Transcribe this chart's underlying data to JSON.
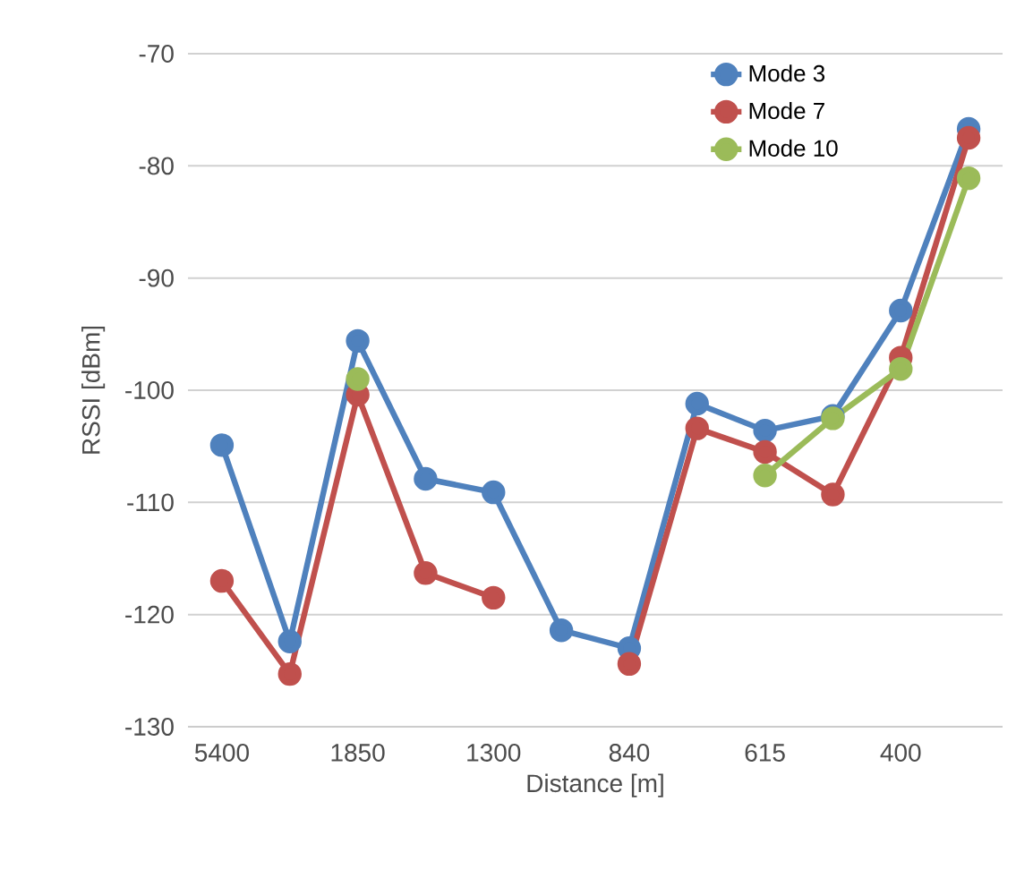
{
  "chart_data": {
    "type": "line",
    "xlabel": "Distance [m]",
    "ylabel": "RSSI [dBm]",
    "categories": [
      "5400",
      null,
      "1850",
      null,
      "1300",
      null,
      "840",
      null,
      "615",
      null,
      "400",
      null
    ],
    "series": [
      {
        "name": "Mode 3",
        "color": "#4f81bd",
        "values": [
          -104.9,
          -122.4,
          -95.6,
          -107.9,
          -109.1,
          -121.4,
          -123.0,
          -101.2,
          -103.6,
          -102.3,
          -92.9,
          -76.7
        ]
      },
      {
        "name": "Mode 7",
        "color": "#c0504d",
        "values": [
          -117.0,
          -125.3,
          -100.4,
          -116.3,
          -118.5,
          null,
          -124.4,
          -103.4,
          -105.5,
          -109.3,
          -97.1,
          -77.5
        ]
      },
      {
        "name": "Mode 10",
        "color": "#9bbb59",
        "values": [
          null,
          null,
          -99.0,
          null,
          null,
          null,
          null,
          null,
          -107.6,
          -102.5,
          -98.1,
          -81.1
        ]
      }
    ],
    "ylim": [
      -130,
      -70
    ],
    "yticks": [
      -130,
      -120,
      -110,
      -100,
      -90,
      -80,
      -70
    ],
    "grid": "y",
    "legend": "top right",
    "marker": "circle",
    "line_style": "solid"
  }
}
